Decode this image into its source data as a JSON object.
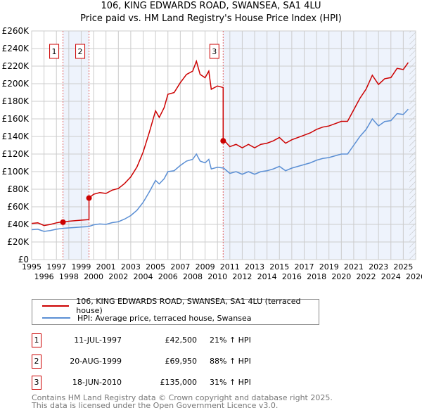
{
  "chart_data": {
    "type": "line",
    "title": "106, KING EDWARDS ROAD, SWANSEA, SA1 4LU",
    "subtitle": "Price paid vs. HM Land Registry's House Price Index (HPI)",
    "xlim": [
      1995,
      2026
    ],
    "ylim": [
      0,
      260000
    ],
    "yticks": [
      0,
      20000,
      40000,
      60000,
      80000,
      100000,
      120000,
      140000,
      160000,
      180000,
      200000,
      220000,
      240000,
      260000
    ],
    "ytick_labels": [
      "£0",
      "£20K",
      "£40K",
      "£60K",
      "£80K",
      "£100K",
      "£120K",
      "£140K",
      "£160K",
      "£180K",
      "£200K",
      "£220K",
      "£240K",
      "£260K"
    ],
    "xticks": [
      "1995",
      "1996",
      "1997",
      "1998",
      "1999",
      "2000",
      "2001",
      "2002",
      "2003",
      "2004",
      "2005",
      "2006",
      "2007",
      "2008",
      "2009",
      "2010",
      "2011",
      "2012",
      "2013",
      "2014",
      "2015",
      "2016",
      "2017",
      "2018",
      "2019",
      "2020",
      "2021",
      "2022",
      "2023",
      "2024",
      "2025",
      "2026"
    ],
    "grid": true,
    "colors": {
      "property": "#cc0000",
      "hpi": "#5b8fd4",
      "shade": "#eef3fc",
      "vline": "#e06060"
    },
    "hpi_series": {
      "name": "HPI: Average price, terraced house, Swansea",
      "x": [
        1995,
        1995.5,
        1996,
        1996.5,
        1997,
        1997.5,
        1998,
        1998.5,
        1999,
        1999.6,
        2000,
        2000.5,
        2001,
        2001.5,
        2002,
        2002.5,
        2003,
        2003.5,
        2004,
        2004.5,
        2005,
        2005.3,
        2005.7,
        2006,
        2006.5,
        2007,
        2007.5,
        2008,
        2008.3,
        2008.6,
        2009,
        2009.3,
        2009.5,
        2010,
        2010.5,
        2011,
        2011.5,
        2012,
        2012.5,
        2013,
        2013.5,
        2014,
        2014.5,
        2015,
        2015.5,
        2016,
        2016.5,
        2017,
        2017.5,
        2018,
        2018.5,
        2019,
        2019.5,
        2020,
        2020.5,
        2021,
        2021.5,
        2022,
        2022.5,
        2023,
        2023.5,
        2024,
        2024.5,
        2025,
        2025.4
      ],
      "y": [
        34000,
        34500,
        32000,
        33000,
        34500,
        35500,
        36000,
        36500,
        37000,
        37500,
        39500,
        40500,
        40000,
        42000,
        43000,
        46000,
        50000,
        56000,
        65000,
        77000,
        90000,
        86000,
        92000,
        100000,
        101000,
        107000,
        112000,
        114000,
        120000,
        112000,
        110000,
        114000,
        103000,
        105000,
        104000,
        98000,
        100000,
        97000,
        100000,
        97000,
        100000,
        101000,
        103000,
        106000,
        101000,
        104000,
        106000,
        108000,
        110000,
        113000,
        115000,
        116000,
        118000,
        120000,
        120000,
        130000,
        140000,
        148000,
        160000,
        152000,
        157000,
        158000,
        166000,
        165000,
        171000
      ]
    },
    "property_series": {
      "name": "106, KING EDWARDS ROAD, SWANSEA, SA1 4LU (terraced house)"
    },
    "sales": [
      {
        "num": "1",
        "x": 1997.53,
        "date": "11-JUL-1997",
        "price": 42500,
        "price_label": "£42,500",
        "hpi_label": "21% ↑ HPI",
        "factor": 1.21
      },
      {
        "num": "2",
        "x": 1999.63,
        "date": "20-AUG-1999",
        "price": 69950,
        "price_label": "£69,950",
        "hpi_label": "88% ↑ HPI",
        "factor": 1.88
      },
      {
        "num": "3",
        "x": 2010.46,
        "date": "18-JUN-2010",
        "price": 135000,
        "price_label": "£135,000",
        "hpi_label": "31% ↑ HPI",
        "factor": 1.31
      }
    ],
    "projection_start": 2025.5
  },
  "legend": {
    "property": "106, KING EDWARDS ROAD, SWANSEA, SA1 4LU (terraced house)",
    "hpi": "HPI: Average price, terraced house, Swansea"
  },
  "footer": {
    "line1": "Contains HM Land Registry data © Crown copyright and database right 2025.",
    "line2": "This data is licensed under the Open Government Licence v3.0."
  }
}
